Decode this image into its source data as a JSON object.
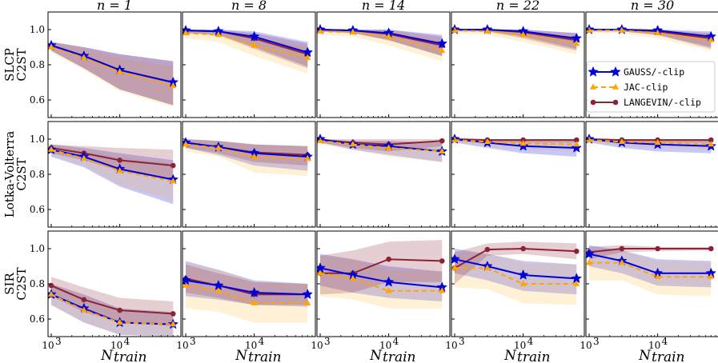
{
  "chart_data": {
    "type": "line",
    "layout": "grid 3 rows x 5 columns",
    "column_titles": [
      "n = 1",
      "n = 8",
      "n = 14",
      "n = 22",
      "n = 30"
    ],
    "row_labels": [
      [
        "SLCP",
        "C2ST"
      ],
      [
        "Lotka-Volterra",
        "C2ST"
      ],
      [
        "SIR",
        "C2ST"
      ]
    ],
    "xlabel": "N_train",
    "xlabel_main": "N",
    "xlabel_sub": "train",
    "xscale": "log",
    "xlim": [
      1000,
      70000
    ],
    "ylim": [
      0.5,
      1.1
    ],
    "ytick_labels": [
      "0.6",
      "0.8",
      "1.0"
    ],
    "yticks": [
      0.6,
      0.8,
      1.0
    ],
    "xtick_labels": [
      {
        "base": "10",
        "exp": "3"
      },
      {
        "base": "10",
        "exp": "4"
      }
    ],
    "xticks": [
      1000,
      10000
    ],
    "x": [
      1000,
      3000,
      10000,
      60000
    ],
    "grid": false,
    "legend": {
      "placement": "right of the n = 30 panels, spanning the SLCP row",
      "entries": [
        "GAUSS/-clip",
        "JAC-clip",
        "LANGEVIN/-clip"
      ]
    },
    "series": [
      {
        "name": "GAUSS/-clip",
        "color": "#0000dd",
        "style": "solid",
        "marker": "star"
      },
      {
        "name": "JAC-clip",
        "color": "#ffa500",
        "style": "dashed",
        "marker": "triangle"
      },
      {
        "name": "LANGEVIN/-clip",
        "color": "#8b2335",
        "style": "solid",
        "marker": "circle"
      }
    ],
    "panels": [
      {
        "row": 0,
        "col": 0,
        "series": [
          {
            "values": [
              0.91,
              0.85,
              0.77,
              0.7
            ],
            "lower": [
              0.88,
              0.78,
              0.66,
              0.57
            ],
            "upper": [
              0.93,
              0.9,
              0.86,
              0.82
            ]
          },
          {
            "values": [
              0.9,
              0.84,
              0.76,
              0.68
            ],
            "lower": [
              0.87,
              0.77,
              0.65,
              0.56
            ],
            "upper": [
              0.93,
              0.89,
              0.84,
              0.79
            ]
          },
          {
            "values": [
              0.91,
              0.85,
              0.77,
              0.7
            ],
            "lower": [
              0.88,
              0.78,
              0.66,
              0.57
            ],
            "upper": [
              0.93,
              0.9,
              0.86,
              0.82
            ]
          }
        ]
      },
      {
        "row": 0,
        "col": 1,
        "series": [
          {
            "values": [
              0.995,
              0.99,
              0.96,
              0.87
            ],
            "lower": [
              0.98,
              0.97,
              0.9,
              0.79
            ],
            "upper": [
              1.0,
              1.0,
              0.99,
              0.93
            ]
          },
          {
            "values": [
              0.98,
              0.97,
              0.91,
              0.84
            ],
            "lower": [
              0.95,
              0.93,
              0.85,
              0.75
            ],
            "upper": [
              0.99,
              0.99,
              0.96,
              0.9
            ]
          },
          {
            "values": [
              0.995,
              0.99,
              0.95,
              0.86
            ],
            "lower": [
              0.98,
              0.97,
              0.89,
              0.78
            ],
            "upper": [
              1.0,
              1.0,
              0.98,
              0.92
            ]
          }
        ]
      },
      {
        "row": 0,
        "col": 2,
        "series": [
          {
            "values": [
              1.0,
              0.995,
              0.98,
              0.92
            ],
            "lower": [
              0.99,
              0.98,
              0.94,
              0.85
            ],
            "upper": [
              1.0,
              1.0,
              1.0,
              0.97
            ]
          },
          {
            "values": [
              0.99,
              0.985,
              0.96,
              0.88
            ],
            "lower": [
              0.97,
              0.96,
              0.91,
              0.82
            ],
            "upper": [
              1.0,
              1.0,
              0.99,
              0.94
            ]
          },
          {
            "values": [
              1.0,
              0.995,
              0.975,
              0.91
            ],
            "lower": [
              0.99,
              0.98,
              0.94,
              0.85
            ],
            "upper": [
              1.0,
              1.0,
              1.0,
              0.96
            ]
          }
        ]
      },
      {
        "row": 0,
        "col": 3,
        "series": [
          {
            "values": [
              1.0,
              1.0,
              0.99,
              0.95
            ],
            "lower": [
              0.99,
              0.99,
              0.96,
              0.89
            ],
            "upper": [
              1.0,
              1.0,
              1.0,
              0.98
            ]
          },
          {
            "values": [
              0.995,
              0.99,
              0.97,
              0.92
            ],
            "lower": [
              0.98,
              0.97,
              0.93,
              0.86
            ],
            "upper": [
              1.0,
              1.0,
              0.99,
              0.96
            ]
          },
          {
            "values": [
              1.0,
              1.0,
              0.985,
              0.94
            ],
            "lower": [
              0.99,
              0.99,
              0.95,
              0.88
            ],
            "upper": [
              1.0,
              1.0,
              1.0,
              0.98
            ]
          }
        ]
      },
      {
        "row": 0,
        "col": 4,
        "series": [
          {
            "values": [
              1.0,
              1.0,
              0.995,
              0.96
            ],
            "lower": [
              0.99,
              0.99,
              0.97,
              0.9
            ],
            "upper": [
              1.0,
              1.0,
              1.0,
              0.99
            ]
          },
          {
            "values": [
              0.995,
              0.995,
              0.98,
              0.94
            ],
            "lower": [
              0.98,
              0.98,
              0.95,
              0.88
            ],
            "upper": [
              1.0,
              1.0,
              1.0,
              0.97
            ]
          },
          {
            "values": [
              1.0,
              1.0,
              0.99,
              0.95
            ],
            "lower": [
              0.99,
              0.99,
              0.97,
              0.89
            ],
            "upper": [
              1.0,
              1.0,
              1.0,
              0.98
            ]
          }
        ]
      },
      {
        "row": 1,
        "col": 0,
        "series": [
          {
            "values": [
              0.94,
              0.9,
              0.83,
              0.77
            ],
            "lower": [
              0.9,
              0.84,
              0.73,
              0.63
            ],
            "upper": [
              0.97,
              0.95,
              0.92,
              0.88
            ]
          },
          {
            "values": [
              0.94,
              0.89,
              0.82,
              0.76
            ],
            "lower": [
              0.91,
              0.85,
              0.74,
              0.65
            ],
            "upper": [
              0.97,
              0.94,
              0.9,
              0.86
            ]
          },
          {
            "values": [
              0.95,
              0.92,
              0.88,
              0.85
            ],
            "lower": [
              0.92,
              0.88,
              0.82,
              0.77
            ],
            "upper": [
              0.97,
              0.96,
              0.95,
              0.94
            ]
          }
        ]
      },
      {
        "row": 1,
        "col": 1,
        "series": [
          {
            "values": [
              0.98,
              0.955,
              0.92,
              0.9
            ],
            "lower": [
              0.95,
              0.91,
              0.85,
              0.82
            ],
            "upper": [
              1.0,
              0.99,
              0.97,
              0.96
            ]
          },
          {
            "values": [
              0.97,
              0.95,
              0.9,
              0.89
            ],
            "lower": [
              0.93,
              0.9,
              0.81,
              0.79
            ],
            "upper": [
              0.99,
              0.99,
              0.97,
              0.96
            ]
          },
          {
            "values": [
              0.98,
              0.955,
              0.925,
              0.91
            ],
            "lower": [
              0.95,
              0.92,
              0.87,
              0.85
            ],
            "upper": [
              1.0,
              0.99,
              0.97,
              0.96
            ]
          }
        ]
      },
      {
        "row": 1,
        "col": 2,
        "series": [
          {
            "values": [
              1.0,
              0.97,
              0.96,
              0.93
            ],
            "lower": [
              0.98,
              0.94,
              0.91,
              0.87
            ],
            "upper": [
              1.0,
              0.99,
              0.99,
              0.98
            ]
          },
          {
            "values": [
              0.99,
              0.97,
              0.95,
              0.93
            ],
            "lower": [
              0.97,
              0.94,
              0.9,
              0.87
            ],
            "upper": [
              1.0,
              0.99,
              0.99,
              0.98
            ]
          },
          {
            "values": [
              0.995,
              0.98,
              0.97,
              0.99
            ],
            "lower": [
              0.98,
              0.95,
              0.93,
              0.96
            ],
            "upper": [
              1.0,
              1.0,
              1.0,
              1.0
            ]
          }
        ]
      },
      {
        "row": 1,
        "col": 3,
        "series": [
          {
            "values": [
              1.0,
              0.98,
              0.96,
              0.95
            ],
            "lower": [
              0.98,
              0.95,
              0.92,
              0.9
            ],
            "upper": [
              1.0,
              1.0,
              0.99,
              0.99
            ]
          },
          {
            "values": [
              0.995,
              0.985,
              0.975,
              0.97
            ],
            "lower": [
              0.98,
              0.96,
              0.94,
              0.93
            ],
            "upper": [
              1.0,
              1.0,
              1.0,
              1.0
            ]
          },
          {
            "values": [
              1.0,
              0.995,
              0.995,
              0.995
            ],
            "lower": [
              0.99,
              0.98,
              0.98,
              0.98
            ],
            "upper": [
              1.0,
              1.0,
              1.0,
              1.0
            ]
          }
        ]
      },
      {
        "row": 1,
        "col": 4,
        "series": [
          {
            "values": [
              1.0,
              0.98,
              0.97,
              0.96
            ],
            "lower": [
              0.98,
              0.95,
              0.93,
              0.92
            ],
            "upper": [
              1.0,
              1.0,
              0.99,
              0.99
            ]
          },
          {
            "values": [
              0.995,
              0.985,
              0.98,
              0.97
            ],
            "lower": [
              0.98,
              0.96,
              0.95,
              0.94
            ],
            "upper": [
              1.0,
              1.0,
              1.0,
              1.0
            ]
          },
          {
            "values": [
              1.0,
              0.995,
              0.995,
              0.995
            ],
            "lower": [
              0.99,
              0.98,
              0.98,
              0.98
            ],
            "upper": [
              1.0,
              1.0,
              1.0,
              1.0
            ]
          }
        ]
      },
      {
        "row": 2,
        "col": 0,
        "series": [
          {
            "values": [
              0.74,
              0.66,
              0.58,
              0.57
            ],
            "lower": [
              0.68,
              0.58,
              0.51,
              0.5
            ],
            "upper": [
              0.8,
              0.74,
              0.66,
              0.64
            ]
          },
          {
            "values": [
              0.74,
              0.65,
              0.58,
              0.57
            ],
            "lower": [
              0.68,
              0.58,
              0.51,
              0.5
            ],
            "upper": [
              0.8,
              0.73,
              0.65,
              0.63
            ]
          },
          {
            "values": [
              0.79,
              0.71,
              0.65,
              0.63
            ],
            "lower": [
              0.73,
              0.64,
              0.58,
              0.56
            ],
            "upper": [
              0.84,
              0.78,
              0.72,
              0.7
            ]
          }
        ]
      },
      {
        "row": 2,
        "col": 1,
        "series": [
          {
            "values": [
              0.82,
              0.79,
              0.75,
              0.74
            ],
            "lower": [
              0.73,
              0.71,
              0.68,
              0.67
            ],
            "upper": [
              0.93,
              0.88,
              0.82,
              0.8
            ]
          },
          {
            "values": [
              0.79,
              0.76,
              0.69,
              0.69
            ],
            "lower": [
              0.66,
              0.64,
              0.58,
              0.58
            ],
            "upper": [
              0.92,
              0.88,
              0.81,
              0.8
            ]
          },
          {
            "values": [
              0.83,
              0.79,
              0.74,
              0.74
            ],
            "lower": [
              0.75,
              0.72,
              0.68,
              0.68
            ],
            "upper": [
              0.91,
              0.86,
              0.81,
              0.8
            ]
          }
        ]
      },
      {
        "row": 2,
        "col": 2,
        "series": [
          {
            "values": [
              0.89,
              0.85,
              0.81,
              0.78
            ],
            "lower": [
              0.79,
              0.75,
              0.72,
              0.7
            ],
            "upper": [
              0.97,
              0.94,
              0.9,
              0.87
            ]
          },
          {
            "values": [
              0.86,
              0.83,
              0.76,
              0.76
            ],
            "lower": [
              0.73,
              0.71,
              0.66,
              0.66
            ],
            "upper": [
              0.96,
              0.94,
              0.88,
              0.87
            ]
          },
          {
            "values": [
              0.86,
              0.86,
              0.94,
              0.93
            ],
            "lower": [
              0.74,
              0.75,
              0.81,
              0.81
            ],
            "upper": [
              0.96,
              0.99,
              1.04,
              1.05
            ]
          }
        ]
      },
      {
        "row": 2,
        "col": 3,
        "series": [
          {
            "values": [
              0.94,
              0.9,
              0.85,
              0.83
            ],
            "lower": [
              0.86,
              0.82,
              0.76,
              0.74
            ],
            "upper": [
              1.0,
              0.97,
              0.93,
              0.91
            ]
          },
          {
            "values": [
              0.89,
              0.89,
              0.8,
              0.8
            ],
            "lower": [
              0.78,
              0.77,
              0.69,
              0.68
            ],
            "upper": [
              0.98,
              0.97,
              0.92,
              0.91
            ]
          },
          {
            "values": [
              0.89,
              0.995,
              1.0,
              0.985
            ],
            "lower": [
              0.8,
              0.96,
              0.97,
              0.94
            ],
            "upper": [
              0.98,
              1.03,
              1.04,
              1.03
            ]
          }
        ]
      },
      {
        "row": 2,
        "col": 4,
        "series": [
          {
            "values": [
              0.97,
              0.93,
              0.86,
              0.86
            ],
            "lower": [
              0.9,
              0.86,
              0.79,
              0.78
            ],
            "upper": [
              1.02,
              0.99,
              0.94,
              0.93
            ]
          },
          {
            "values": [
              0.92,
              0.92,
              0.84,
              0.84
            ],
            "lower": [
              0.82,
              0.82,
              0.74,
              0.73
            ],
            "upper": [
              0.99,
              0.99,
              0.93,
              0.92
            ]
          },
          {
            "values": [
              0.98,
              1.0,
              1.0,
              1.0
            ],
            "lower": [
              0.94,
              0.98,
              0.985,
              0.99
            ],
            "upper": [
              1.01,
              1.02,
              1.01,
              1.01
            ]
          }
        ]
      }
    ]
  }
}
